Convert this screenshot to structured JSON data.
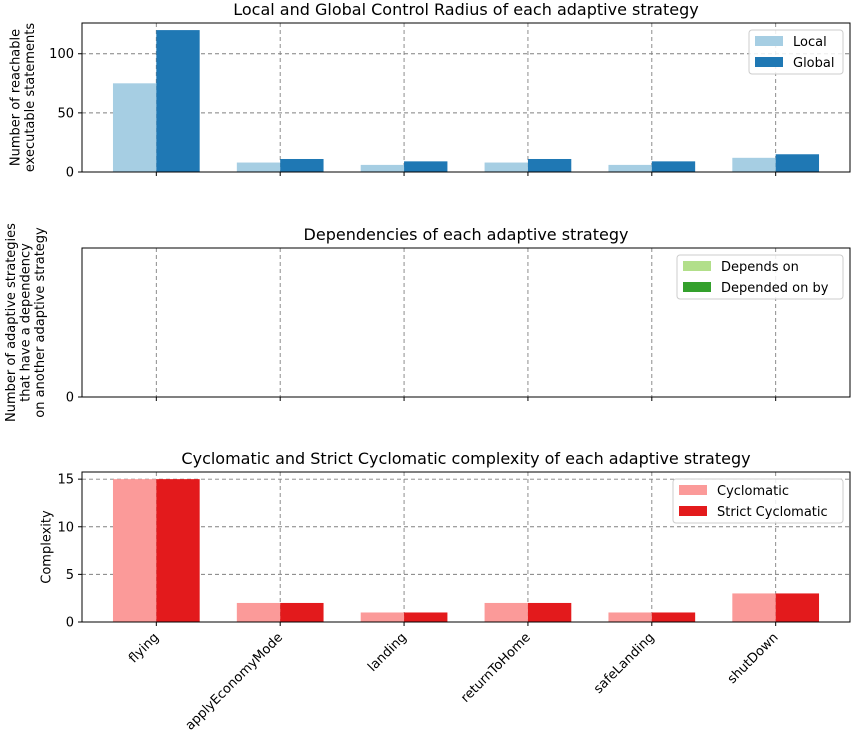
{
  "chart_data": [
    {
      "type": "bar",
      "title": "Local and Global Control Radius of each adaptive strategy",
      "ylabel": [
        "Number of reachable",
        "executable statements"
      ],
      "xlabel": "",
      "categories": [
        "flying",
        "applyEconomyMode",
        "landing",
        "returnToHome",
        "safeLanding",
        "shutDown"
      ],
      "series": [
        {
          "name": "Local",
          "values": [
            75,
            8,
            6,
            8,
            6,
            12
          ],
          "color": "#a6cee3"
        },
        {
          "name": "Global",
          "values": [
            120,
            11,
            9,
            11,
            9,
            15
          ],
          "color": "#1f78b4"
        }
      ],
      "ylim": [
        0,
        126
      ],
      "yticks": [
        0,
        50,
        100
      ],
      "grid": true,
      "legend": "top-right"
    },
    {
      "type": "bar",
      "title": "Dependencies of each adaptive strategy",
      "ylabel": [
        "Number of adaptive strategies",
        "that have a dependency",
        "on another adaptive strategy"
      ],
      "xlabel": "",
      "categories": [
        "flying",
        "applyEconomyMode",
        "landing",
        "returnToHome",
        "safeLanding",
        "shutDown"
      ],
      "series": [
        {
          "name": "Depends on",
          "values": [
            0,
            0,
            0,
            0,
            0,
            0
          ],
          "color": "#b2df8a"
        },
        {
          "name": "Depended on by",
          "values": [
            0,
            0,
            0,
            0,
            0,
            0
          ],
          "color": "#33a02c"
        }
      ],
      "ylim": [
        0,
        1
      ],
      "yticks": [
        0
      ],
      "grid": true,
      "legend": "top-right"
    },
    {
      "type": "bar",
      "title": "Cyclomatic and Strict Cyclomatic complexity of each adaptive strategy",
      "ylabel": [
        "Complexity"
      ],
      "xlabel": "",
      "categories": [
        "flying",
        "applyEconomyMode",
        "landing",
        "returnToHome",
        "safeLanding",
        "shutDown"
      ],
      "series": [
        {
          "name": "Cyclomatic",
          "values": [
            15,
            2,
            1,
            2,
            1,
            3
          ],
          "color": "#fb9a99"
        },
        {
          "name": "Strict Cyclomatic",
          "values": [
            15,
            2,
            1,
            2,
            1,
            3
          ],
          "color": "#e31a1c"
        }
      ],
      "ylim": [
        0,
        15.75
      ],
      "yticks": [
        0,
        5,
        10,
        15
      ],
      "grid": true,
      "legend": "top-right",
      "show_xticklabels": true
    }
  ]
}
